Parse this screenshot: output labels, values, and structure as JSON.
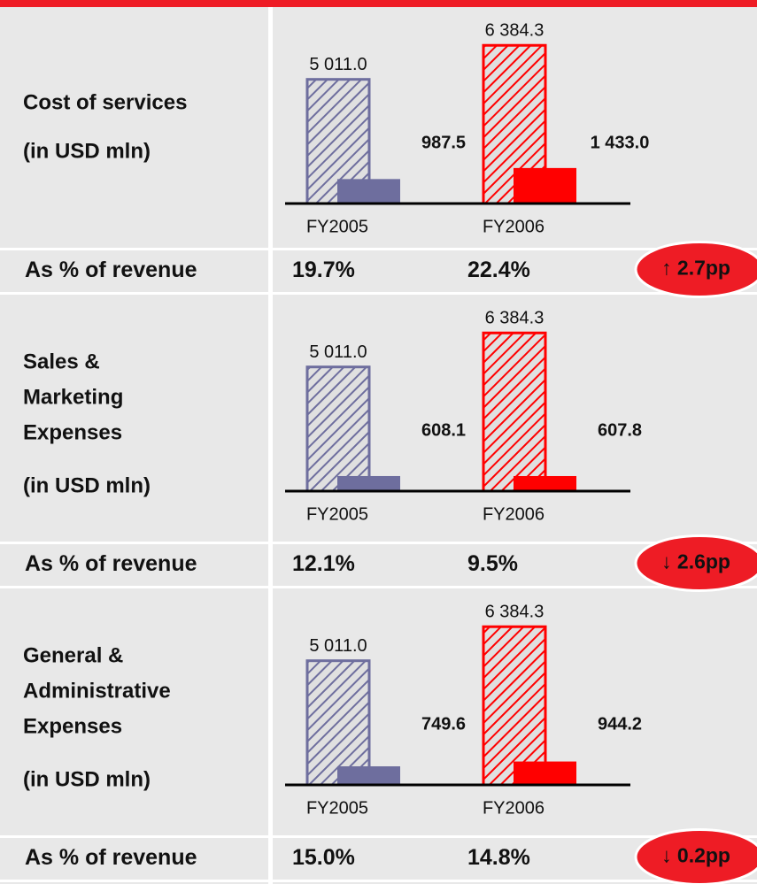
{
  "chart_data": [
    {
      "type": "bar",
      "title": [
        "Cost of services"
      ],
      "unit": "(in USD mln)",
      "categories": [
        "FY2005",
        "FY2006"
      ],
      "colors": [
        "#6e6e9e",
        "#ff0000"
      ],
      "series": [
        {
          "style": "hatched",
          "values": [
            5011.0,
            6384.3
          ],
          "value_labels": [
            "5 011.0",
            "6 384.3"
          ]
        },
        {
          "style": "solid",
          "values": [
            987.5,
            1433.0
          ],
          "value_labels": [
            "987.5",
            "1 433.0"
          ]
        }
      ],
      "share_label": "As % of revenue",
      "share": {
        "values": [
          19.7,
          22.4
        ],
        "value_labels": [
          "19.7%",
          "22.4%"
        ]
      },
      "change": {
        "value": 2.7,
        "label": "↑ 2.7pp"
      }
    },
    {
      "type": "bar",
      "title": [
        "Sales &",
        "Marketing",
        "Expenses"
      ],
      "unit": "(in USD mln)",
      "categories": [
        "FY2005",
        "FY2006"
      ],
      "colors": [
        "#6e6e9e",
        "#ff0000"
      ],
      "series": [
        {
          "style": "hatched",
          "values": [
            5011.0,
            6384.3
          ],
          "value_labels": [
            "5 011.0",
            "6 384.3"
          ]
        },
        {
          "style": "solid",
          "values": [
            608.1,
            607.8
          ]
        }
      ],
      "share_label": "As % of revenue",
      "share": {
        "values": [
          12.1,
          9.5
        ],
        "value_labels": [
          "12.1%",
          "9.5%"
        ]
      },
      "change": {
        "value": -2.6,
        "label": "↓ 2.6pp"
      }
    },
    {
      "type": "bar",
      "title": [
        "General &",
        "Administrative",
        "Expenses"
      ],
      "unit": "(in USD mln)",
      "categories": [
        "FY2005",
        "FY2006"
      ],
      "colors": [
        "#6e6e9e",
        "#ff0000"
      ],
      "series": [
        {
          "style": "hatched",
          "values": [
            5011.0,
            6384.3
          ],
          "value_labels": [
            "5 011.0",
            "6 384.3"
          ]
        },
        {
          "style": "solid",
          "values": [
            749.6,
            944.2
          ]
        }
      ],
      "share_label": "As % of revenue",
      "share": {
        "values": [
          15.0,
          14.8
        ],
        "value_labels": [
          "15.0%",
          "14.8%"
        ]
      },
      "change": {
        "value": -0.2,
        "label": "↓ 0.2pp"
      }
    }
  ]
}
